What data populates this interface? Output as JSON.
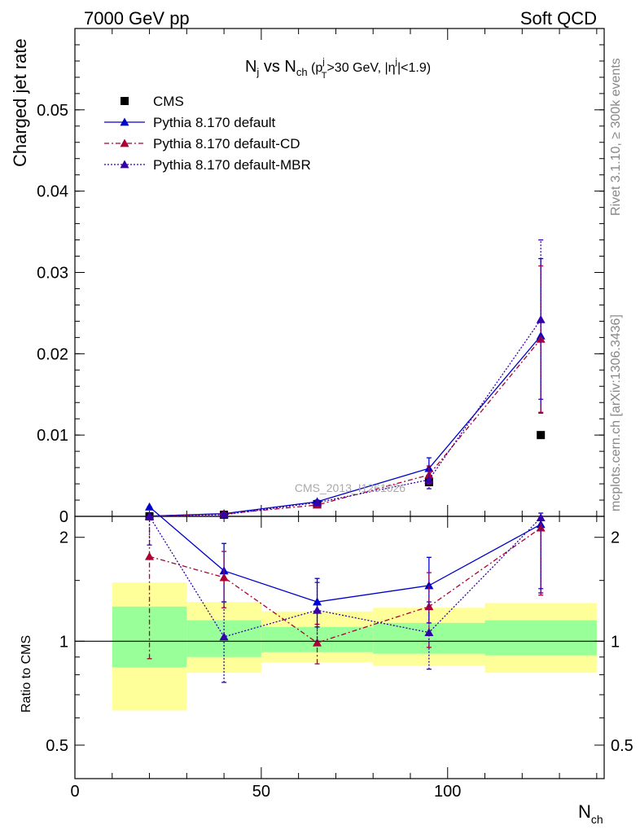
{
  "header": {
    "left": "7000 GeV pp",
    "right": "Soft QCD"
  },
  "side_labels": {
    "rivet": "Rivet 3.1.10, ≥ 300k events",
    "mcplots": "mcplots.cern.ch [arXiv:1306.3436]"
  },
  "watermark": "CMS_2013_I1261026",
  "colors": {
    "cms": "#000000",
    "default": "#0000cc",
    "cd": "#aa0033",
    "mbr": "#3300aa",
    "band_inner": "#99ff99",
    "band_outer": "#ffff99"
  },
  "chart_data": [
    {
      "type": "line",
      "title_parts": {
        "n": "N",
        "j": "j",
        "vs": " vs ",
        "ch": "ch",
        "cut_open": " (p",
        "cut_sup1": "j",
        "cut_sub": "T",
        "cut_mid": ">30 GeV, |η",
        "cut_sup2": "j",
        "cut_close": "|<1.9)"
      },
      "ylabel": "Charged jet rate",
      "xlim": [
        0,
        142
      ],
      "ylim": [
        0,
        0.06
      ],
      "yticks": [
        0,
        0.01,
        0.02,
        0.03,
        0.04,
        0.05
      ],
      "ytick_labels": [
        "0",
        "0.01",
        "0.02",
        "0.03",
        "0.04",
        "0.05"
      ],
      "legend_position": "top-left",
      "series": [
        {
          "name": "CMS",
          "style": "marker",
          "x": [
            20,
            40,
            65,
            95,
            125
          ],
          "y": [
            1e-05,
            0.0002,
            0.0015,
            0.0042,
            0.01
          ]
        },
        {
          "name": "Pythia 8.170 default",
          "style": "solid",
          "x": [
            20,
            40,
            65,
            95,
            125
          ],
          "y": [
            3e-05,
            0.00034,
            0.0018,
            0.0059,
            0.0222
          ],
          "err": [
            2e-05,
            0.0001,
            0.0002,
            0.0013,
            0.0095
          ]
        },
        {
          "name": "Pythia 8.170 default-CD",
          "style": "dashdot",
          "x": [
            20,
            40,
            65,
            95,
            125
          ],
          "y": [
            2e-05,
            0.0003,
            0.0014,
            0.0051,
            0.0218
          ],
          "err": [
            1e-05,
            0.0001,
            0.0002,
            0.0011,
            0.009
          ]
        },
        {
          "name": "Pythia 8.170 default-MBR",
          "style": "dotted",
          "x": [
            20,
            40,
            65,
            95,
            125
          ],
          "y": [
            3e-05,
            0.0002,
            0.0017,
            0.0045,
            0.0242
          ],
          "err": [
            2e-05,
            0.0001,
            0.0002,
            0.0011,
            0.0098
          ]
        }
      ]
    },
    {
      "type": "line",
      "xlabel": "N",
      "xlabel_sub": "ch",
      "ylabel": "Ratio to CMS",
      "ylim": [
        0.4,
        2.3
      ],
      "log_y": true,
      "yticks": [
        0.5,
        1,
        2
      ],
      "ytick_labels": [
        "0.5",
        "1",
        "2"
      ],
      "xticks": [
        0,
        50,
        100
      ],
      "xtick_labels": [
        "0",
        "50",
        "100"
      ],
      "bands": [
        {
          "x0": 10,
          "x1": 30,
          "inner": [
            0.84,
            1.26
          ],
          "outer": [
            0.63,
            1.48
          ]
        },
        {
          "x0": 30,
          "x1": 50,
          "inner": [
            0.9,
            1.15
          ],
          "outer": [
            0.81,
            1.3
          ]
        },
        {
          "x0": 50,
          "x1": 80,
          "inner": [
            0.93,
            1.1
          ],
          "outer": [
            0.87,
            1.22
          ]
        },
        {
          "x0": 80,
          "x1": 110,
          "inner": [
            0.92,
            1.13
          ],
          "outer": [
            0.85,
            1.25
          ]
        },
        {
          "x0": 110,
          "x1": 140,
          "inner": [
            0.91,
            1.15
          ],
          "outer": [
            0.81,
            1.29
          ]
        }
      ],
      "series": [
        {
          "name": "Pythia 8.170 default",
          "style": "solid",
          "x": [
            20,
            40,
            65,
            95,
            125
          ],
          "y": [
            2.45,
            1.6,
            1.3,
            1.45,
            2.18
          ],
          "err_lo": [
            2.45,
            1.3,
            1.1,
            1.13,
            1.38
          ],
          "err_hi": [
            2.45,
            1.92,
            1.52,
            1.75,
            2.35
          ]
        },
        {
          "name": "Pythia 8.170 default-CD",
          "style": "dashdot",
          "x": [
            20,
            40,
            65,
            95,
            125
          ],
          "y": [
            1.76,
            1.53,
            0.99,
            1.26,
            2.13
          ],
          "err_lo": [
            0.89,
            1.25,
            0.86,
            0.96,
            1.36
          ],
          "err_hi": [
            2.3,
            1.82,
            1.12,
            1.58,
            2.3
          ]
        },
        {
          "name": "Pythia 8.170 default-MBR",
          "style": "dotted",
          "x": [
            20,
            40,
            65,
            95,
            125
          ],
          "y": [
            2.3,
            1.03,
            1.23,
            1.06,
            2.28
          ],
          "err_lo": [
            1.9,
            0.76,
            1.0,
            0.83,
            1.42
          ],
          "err_hi": [
            2.3,
            1.3,
            1.48,
            1.3,
            2.3
          ]
        }
      ]
    }
  ]
}
